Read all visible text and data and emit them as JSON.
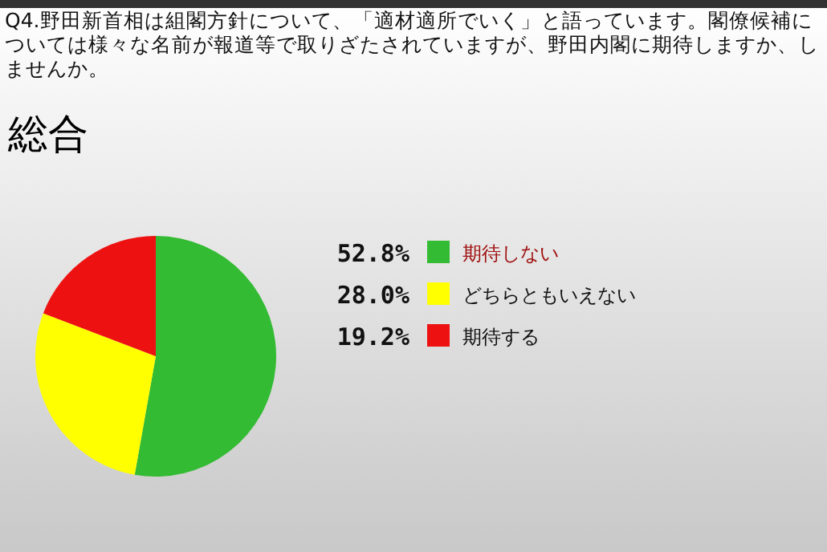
{
  "chart_data": {
    "type": "pie",
    "title": "Q4.野田新首相は組閣方針について、「適材適所でいく」と語っています。閣僚候補については様々な名前が報道等で取りざたされていますが、野田内閣に期待しますか、しませんか。",
    "subtitle": "総合",
    "categories": [
      "期待しない",
      "どちらともいえない",
      "期待する"
    ],
    "values": [
      52.8,
      28.0,
      19.2
    ],
    "colors": [
      "#33bb33",
      "#ffff00",
      "#ee1111"
    ],
    "value_labels": [
      "52.8%",
      "28.0%",
      "19.2%"
    ],
    "legend": "right"
  }
}
